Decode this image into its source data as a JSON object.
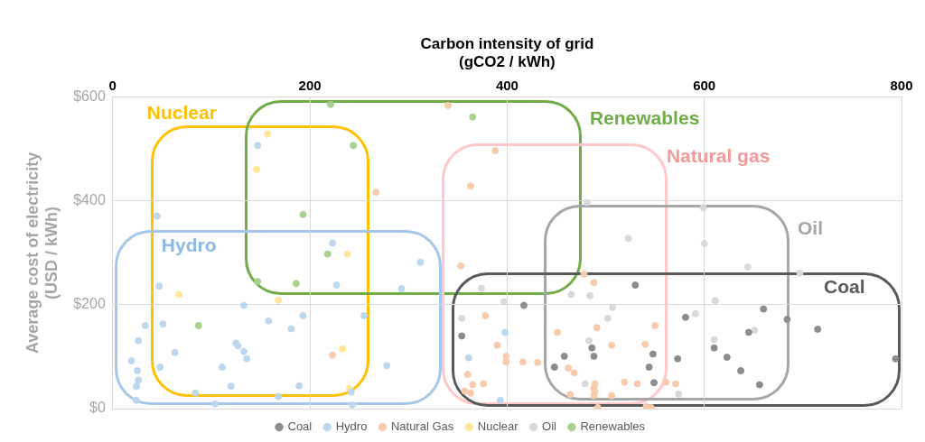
{
  "chart_data": {
    "type": "scatter",
    "xlabel": "Carbon intensity of grid\n(gCO2 / kWh)",
    "ylabel": "Average cost of electricity\n(USD / kWh)",
    "xlim": [
      0,
      800
    ],
    "xticks": [
      0,
      200,
      400,
      600,
      800
    ],
    "ylim": [
      0,
      600
    ],
    "yticks": [
      {
        "value": 0,
        "label": "$0"
      },
      {
        "value": 200,
        "label": "$200"
      },
      {
        "value": 400,
        "label": "$400"
      },
      {
        "value": 600,
        "label": "$600"
      }
    ],
    "grid": true,
    "legend": "bottom",
    "marker": "circle",
    "series": [
      {
        "name": "Coal",
        "color": "#8c8c8c",
        "x": [
          417,
          530,
          354,
          486,
          488,
          458,
          448,
          581,
          660,
          684,
          715,
          645,
          610,
          548,
          573,
          544,
          623,
          637,
          549,
          656,
          794
        ],
        "values": [
          199,
          238,
          140,
          117,
          101,
          101,
          80,
          176,
          192,
          172,
          153,
          147,
          117,
          105,
          96,
          80,
          99,
          73,
          50,
          46,
          96
        ]
      },
      {
        "name": "Hydro",
        "color": "#bdd7ee",
        "x": [
          147,
          45,
          223,
          47,
          227,
          133,
          33,
          51,
          158,
          193,
          181,
          255,
          26,
          125,
          127,
          133,
          136,
          63,
          19,
          48,
          111,
          25,
          26,
          24,
          120,
          189,
          84,
          168,
          24,
          104,
          242,
          243,
          312,
          293,
          278,
          398,
          361,
          393
        ],
        "values": [
          507,
          371,
          319,
          236,
          238,
          199,
          160,
          163,
          169,
          179,
          154,
          179,
          131,
          126,
          121,
          110,
          96,
          108,
          92,
          80,
          80,
          73,
          55,
          43,
          43,
          44,
          30,
          23,
          16,
          9,
          32,
          7,
          282,
          231,
          83,
          147,
          98,
          16
        ]
      },
      {
        "name": "Natural Gas",
        "color": "#f8cbad",
        "x": [
          267,
          340,
          388,
          363,
          223,
          353,
          478,
          488,
          378,
          491,
          451,
          390,
          506,
          399,
          399,
          416,
          431,
          462,
          468,
          360,
          365,
          376,
          357,
          363,
          489,
          488,
          489,
          488,
          464,
          506,
          519,
          532,
          492,
          550,
          540,
          561,
          571,
          541,
          546
        ],
        "values": [
          417,
          584,
          497,
          429,
          103,
          275,
          259,
          243,
          179,
          156,
          147,
          122,
          122,
          101,
          90,
          90,
          89,
          78,
          69,
          66,
          46,
          48,
          34,
          30,
          48,
          39,
          32,
          25,
          27,
          25,
          51,
          48,
          2,
          160,
          124,
          51,
          48,
          4,
          2
        ]
      },
      {
        "name": "Nuclear",
        "color": "#ffe699",
        "x": [
          157,
          146,
          238,
          67,
          168,
          233,
          240
        ],
        "values": [
          529,
          461,
          298,
          220,
          209,
          115,
          39
        ]
      },
      {
        "name": "Oil",
        "color": "#d9d9d9",
        "x": [
          481,
          523,
          599,
          600,
          374,
          397,
          465,
          484,
          507,
          502,
          354,
          483,
          479,
          644,
          697,
          611,
          591,
          651,
          610,
          574
        ],
        "values": [
          397,
          328,
          387,
          318,
          232,
          206,
          220,
          218,
          195,
          174,
          174,
          131,
          48,
          273,
          261,
          208,
          183,
          151,
          133,
          28
        ]
      },
      {
        "name": "Renewables",
        "color": "#a9d18e",
        "x": [
          221,
          244,
          193,
          365,
          218,
          147,
          186,
          87
        ],
        "values": [
          586,
          507,
          374,
          562,
          298,
          245,
          241,
          160
        ]
      }
    ],
    "annotations": [
      "Nuclear",
      "Renewables",
      "Natural gas",
      "Oil",
      "Coal",
      "Hydro"
    ]
  }
}
